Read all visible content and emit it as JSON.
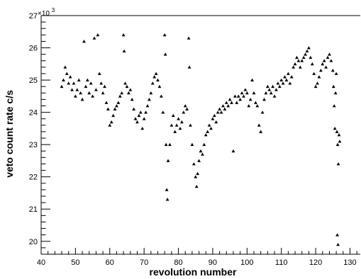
{
  "chart_data": {
    "type": "scatter",
    "title": "",
    "xlabel": "revolution number",
    "ylabel": "veto count rate c/s",
    "y_multiplier_label": "×10",
    "y_multiplier_exp": "3",
    "xlim": [
      40,
      133
    ],
    "ylim": [
      19.6,
      27
    ],
    "x_ticks": [
      40,
      50,
      60,
      70,
      80,
      90,
      100,
      110,
      120,
      130
    ],
    "y_ticks": [
      20,
      21,
      22,
      23,
      24,
      25,
      26,
      27
    ],
    "x_tick_labels": [
      "40",
      "50",
      "60",
      "70",
      "80",
      "90",
      "100",
      "110",
      "120",
      "130"
    ],
    "y_tick_labels": [
      "20",
      "21",
      "22",
      "23",
      "24",
      "25",
      "26",
      "27"
    ],
    "grid": false,
    "legend": "none",
    "marker": "triangle",
    "marker_color": "#000000",
    "series": [
      {
        "points": [
          [
            46.0,
            24.8
          ],
          [
            46.5,
            25.0
          ],
          [
            47.0,
            25.4
          ],
          [
            47.5,
            25.2
          ],
          [
            48.0,
            24.9
          ],
          [
            48.5,
            25.1
          ],
          [
            49.0,
            24.7
          ],
          [
            49.5,
            24.9
          ],
          [
            50.0,
            24.5
          ],
          [
            50.5,
            24.7
          ],
          [
            51.0,
            25.0
          ],
          [
            51.5,
            24.6
          ],
          [
            52.0,
            24.4
          ],
          [
            52.5,
            26.2
          ],
          [
            53.0,
            24.8
          ],
          [
            53.5,
            25.0
          ],
          [
            54.0,
            24.6
          ],
          [
            54.5,
            24.9
          ],
          [
            55.0,
            24.5
          ],
          [
            55.5,
            26.3
          ],
          [
            56.0,
            24.7
          ],
          [
            56.5,
            26.4
          ],
          [
            57.0,
            25.2
          ],
          [
            57.5,
            24.9
          ],
          [
            58.0,
            24.6
          ],
          [
            58.5,
            24.8
          ],
          [
            59.0,
            24.3
          ],
          [
            59.5,
            24.1
          ],
          [
            60.0,
            23.6
          ],
          [
            60.5,
            23.7
          ],
          [
            61.0,
            23.9
          ],
          [
            61.5,
            24.1
          ],
          [
            62.0,
            24.2
          ],
          [
            62.5,
            24.3
          ],
          [
            63.0,
            24.5
          ],
          [
            63.5,
            24.6
          ],
          [
            64.0,
            26.4
          ],
          [
            64.2,
            25.9
          ],
          [
            64.5,
            24.9
          ],
          [
            65.0,
            24.8
          ],
          [
            65.5,
            24.6
          ],
          [
            66.0,
            24.7
          ],
          [
            66.5,
            24.4
          ],
          [
            67.0,
            24.1
          ],
          [
            67.5,
            23.8
          ],
          [
            68.0,
            23.7
          ],
          [
            68.5,
            23.9
          ],
          [
            69.0,
            24.0
          ],
          [
            69.5,
            23.5
          ],
          [
            70.0,
            23.8
          ],
          [
            70.5,
            24.0
          ],
          [
            71.0,
            24.2
          ],
          [
            71.5,
            24.4
          ],
          [
            72.0,
            24.6
          ],
          [
            72.5,
            24.9
          ],
          [
            73.0,
            25.1
          ],
          [
            73.5,
            25.2
          ],
          [
            74.0,
            25.0
          ],
          [
            74.5,
            24.8
          ],
          [
            75.0,
            24.5
          ],
          [
            75.5,
            24.0
          ],
          [
            76.0,
            26.4
          ],
          [
            76.2,
            25.8
          ],
          [
            76.4,
            23.0
          ],
          [
            76.6,
            21.6
          ],
          [
            76.8,
            21.3
          ],
          [
            77.0,
            22.5
          ],
          [
            77.5,
            23.0
          ],
          [
            78.0,
            23.6
          ],
          [
            78.5,
            23.9
          ],
          [
            79.0,
            23.4
          ],
          [
            79.5,
            23.6
          ],
          [
            80.0,
            23.8
          ],
          [
            80.5,
            23.5
          ],
          [
            81.0,
            23.7
          ],
          [
            81.5,
            24.0
          ],
          [
            82.0,
            24.2
          ],
          [
            82.5,
            24.1
          ],
          [
            83.0,
            26.3
          ],
          [
            83.2,
            25.4
          ],
          [
            83.5,
            23.6
          ],
          [
            84.0,
            23.0
          ],
          [
            84.5,
            22.4
          ],
          [
            85.0,
            22.0
          ],
          [
            85.3,
            21.7
          ],
          [
            85.6,
            22.1
          ],
          [
            86.0,
            22.5
          ],
          [
            86.5,
            22.8
          ],
          [
            87.0,
            22.7
          ],
          [
            87.5,
            23.0
          ],
          [
            88.0,
            23.3
          ],
          [
            88.5,
            23.4
          ],
          [
            89.0,
            23.6
          ],
          [
            89.5,
            23.5
          ],
          [
            90.0,
            23.8
          ],
          [
            90.5,
            23.9
          ],
          [
            91.0,
            23.7
          ],
          [
            91.5,
            24.0
          ],
          [
            92.0,
            24.1
          ],
          [
            92.5,
            24.0
          ],
          [
            93.0,
            24.2
          ],
          [
            93.5,
            24.1
          ],
          [
            94.0,
            24.3
          ],
          [
            94.5,
            24.2
          ],
          [
            95.0,
            24.4
          ],
          [
            95.5,
            24.3
          ],
          [
            96.0,
            22.8
          ],
          [
            96.5,
            24.5
          ],
          [
            97.0,
            24.3
          ],
          [
            97.5,
            24.5
          ],
          [
            98.0,
            24.4
          ],
          [
            98.5,
            24.6
          ],
          [
            99.0,
            24.5
          ],
          [
            99.5,
            24.7
          ],
          [
            100.0,
            24.6
          ],
          [
            100.5,
            24.2
          ],
          [
            101.0,
            24.4
          ],
          [
            101.5,
            25.0
          ],
          [
            102.0,
            24.6
          ],
          [
            102.5,
            24.3
          ],
          [
            103.0,
            24.2
          ],
          [
            103.5,
            23.6
          ],
          [
            104.0,
            23.4
          ],
          [
            104.5,
            24.0
          ],
          [
            105.0,
            24.4
          ],
          [
            105.5,
            24.6
          ],
          [
            106.0,
            24.8
          ],
          [
            106.5,
            24.7
          ],
          [
            107.0,
            24.6
          ],
          [
            107.5,
            24.8
          ],
          [
            108.0,
            24.5
          ],
          [
            108.5,
            24.7
          ],
          [
            109.0,
            24.9
          ],
          [
            109.5,
            24.8
          ],
          [
            110.0,
            25.0
          ],
          [
            110.5,
            24.9
          ],
          [
            111.0,
            25.1
          ],
          [
            111.5,
            25.0
          ],
          [
            112.0,
            25.2
          ],
          [
            112.5,
            24.9
          ],
          [
            113.0,
            25.1
          ],
          [
            113.5,
            25.4
          ],
          [
            114.0,
            25.5
          ],
          [
            114.5,
            25.7
          ],
          [
            115.0,
            25.6
          ],
          [
            115.5,
            25.4
          ],
          [
            116.0,
            25.6
          ],
          [
            116.5,
            25.7
          ],
          [
            117.0,
            25.8
          ],
          [
            117.5,
            25.9
          ],
          [
            118.0,
            26.0
          ],
          [
            118.5,
            25.7
          ],
          [
            119.0,
            25.5
          ],
          [
            119.5,
            25.2
          ],
          [
            120.0,
            24.8
          ],
          [
            120.5,
            24.9
          ],
          [
            121.0,
            25.1
          ],
          [
            121.5,
            25.3
          ],
          [
            122.0,
            25.5
          ],
          [
            122.5,
            25.6
          ],
          [
            123.0,
            25.4
          ],
          [
            123.5,
            25.7
          ],
          [
            124.0,
            25.8
          ],
          [
            124.5,
            25.6
          ],
          [
            125.0,
            25.3
          ],
          [
            125.2,
            24.8
          ],
          [
            125.4,
            24.2
          ],
          [
            125.6,
            23.5
          ],
          [
            125.8,
            24.6
          ],
          [
            126.0,
            25.2
          ],
          [
            126.2,
            23.4
          ],
          [
            126.4,
            23.0
          ],
          [
            126.6,
            22.4
          ],
          [
            126.8,
            23.3
          ],
          [
            127.0,
            23.1
          ],
          [
            126.3,
            20.2
          ],
          [
            126.5,
            19.9
          ]
        ]
      }
    ]
  }
}
